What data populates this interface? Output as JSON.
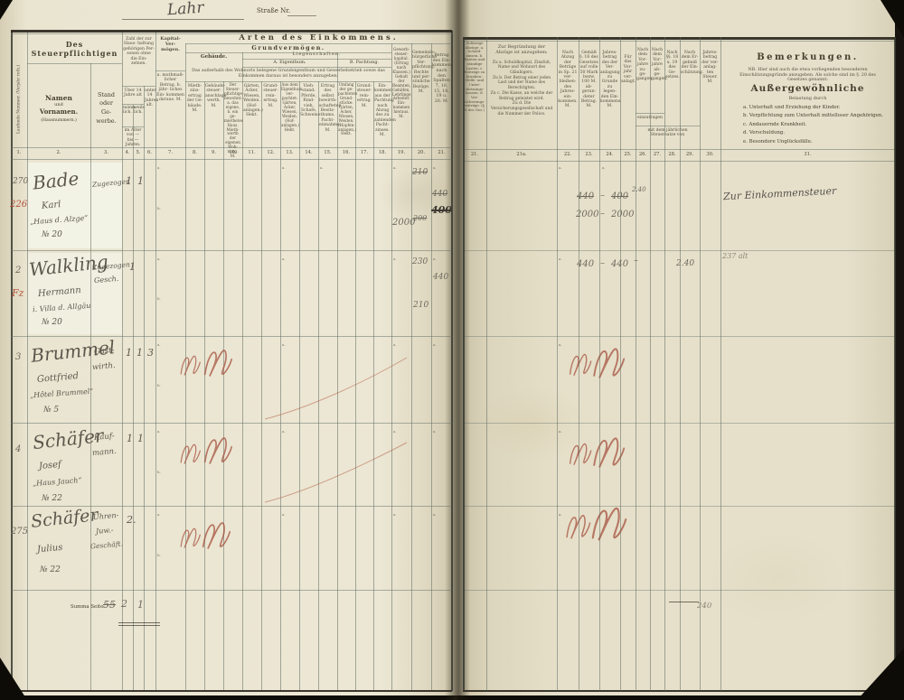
{
  "document": {
    "place": "Lahr",
    "street_label": "Straße Nr."
  },
  "left": {
    "col1_vertical": "Laufende Nummer. (Vorjahr roth.)",
    "taxpayer_group": "Des Steuerpflichtigen",
    "name_title": "Namen",
    "name_mid": "und",
    "name_title2": "Vornamen.",
    "name_sub": "(Hausnummern.)",
    "stand_lines": [
      "Stand",
      "oder",
      "Ge-",
      "werbe."
    ],
    "zahl_head": "Zahl der zur Haus- haltung gehörigen Per- sonen ohne die Ein- zelnen.",
    "over14": "Über 14 Jahre alt",
    "male": "männ- lich.",
    "female": "weib- lich.",
    "under14": "unter 14 Jahren alt.",
    "age_note": "im Alter von — bis — Jahren.",
    "kapital_title": "Kapital- Ver- mögen.",
    "kapital_sub": "a. muthmaß- licher Betrag. b. jähr- liches Ein- kommen daraus. M.",
    "arten": "Arten des Einkommens.",
    "grund": "Grundvermögen.",
    "gebaeude": "Gebäude.",
    "liegenschaften": "Liegenschaften.",
    "eigentum": "A. Eigenthum.",
    "pachtung": "B. Pachtung.",
    "note": "Das außerhalb des Wohnorts belegene Grundeigenthum und Gewerbebetrieb sowie das Einkommen daraus ist besonders anzugeben.",
    "c8": "Mieth- zins- ertrag der Ge- bäude. M.",
    "c9": "Gebäude- steuer- anschlags- werth. M.",
    "c10": "Der Steuer- pflichtige bewohnt: a. das eigene, b. ein ge- miethetes Haus. Mieth- werth der eigenen Woh- nung. M.",
    "c11": "Gärten, Äcker, Wiesen, Weiden. (Hof- anlagen.) Hekt.",
    "c12": "Grund- steuer- rein- ertrag. M.",
    "c13": "Aus dem Eigenthum ver- pachtet: Gärten, Äcker, Wiesen, Weiden. (Hof- anlagen.) Hekt.",
    "c14": "Vieh- stand: Pferde, Rind- vieh, Schafe, Schweine.",
    "c15": "Ertrag des selbst bewirth- schafteten Besitz- thums. Pacht- einnahme. M.",
    "c16": "Umfang der ge- pachteten Grund- stücke: Gärten, Äcker, Wiesen, Weiden. (Hopfen- anlagen.) Hekt.",
    "c17": "Grund- steuer- rein- ertrag. M.",
    "c18": "Ein- kommen aus der Pachtung nach Abzug des zu zahlenden Pacht- zinses. M.",
    "c19": "Gewerb- steuer- kapital. (Ertrag nach Klassen.) Gehalt der Beamten, Gehilfen, Lehrlinge, Arbeiter. Ein- kommen hieraus. M.",
    "c20": "Gemeinde- bürgerliche Ver- pflichtung. Rechte und per- sönliche Bezüge. M.",
    "c21": "Betrag des Ein- kommens nach den Spalten 7, 10, 15, 18, 19 u. 20. M.",
    "nums": [
      "1.",
      "2.",
      "3.",
      "4.",
      "5.",
      "6.",
      "7.",
      "8.",
      "9.",
      "10.",
      "11.",
      "12.",
      "13.",
      "14.",
      "15.",
      "16.",
      "17.",
      "18.",
      "19.",
      "20.",
      "21."
    ]
  },
  "right": {
    "c21r": "Zulässige Abzüge: a. Schuld- zinsen. b. Renten und ständige Lasten. c. Beiträge zu Kranken-, Hülfs- und Unter- stützungs- kassen. d. Ver- sicherungs- beiträge. (§. 8 des Ges.)",
    "c21a_head": "Zur Begründung der Abzüge ist anzugeben:",
    "c21a_items": [
      "Zu a. Schuldkapital, Zinsfuß, Name und Wohnort des Gläubigers.",
      "Zu b. Der Betrag einer jeden Last und der Name des Berechtigten.",
      "Zu c. Die Kasse, an welche der Beitrag geleistet wird.",
      "Zu d. Die Versicherungsgesellschaft und die Nummer der Police."
    ],
    "c22": "Nach Abzug der Beträge in Sp. 21 ver- bleiben- des Jahres- ein- kommen. M.",
    "c23": "Gemäß §. 16 des Gesetzes auf volle 50 Mark bezw. 100 M. ab- gerun- deter Betrag. M.",
    "c24": "Jahres- betrag des der Ver- anlagung zu Grunde zu legen- den Ein- kommens. M.",
    "c25": "Für das Vor- jahr ver- anlagt.",
    "c26": "Nach dem Vor- jahre zu- ge- gangen.",
    "c27": "Nach dem Vor- jahre ab- ge- gangen.",
    "c2627_note1": "einzutragen",
    "c2627_note2": "mit dem jährlichen Steuersatze von",
    "c28": "Nach §§. 18 u. 19 des Ge- setzes.",
    "c29": "Nach dem Er- gebniß der Ein- schätzung.",
    "c30": "Jahres- betrag der ver- anlag- ten Steuer. M.",
    "nums": [
      "21.",
      "21a.",
      "22.",
      "23.",
      "24.",
      "25.",
      "26.",
      "27.",
      "28.",
      "29.",
      "30.",
      "31."
    ]
  },
  "bemerkungen": {
    "title": "Bemerkungen.",
    "para": "NB. Hier sind auch die etwa vorliegenden besonderen Einschätzungsgründe anzugeben. Als solche sind im §. 20 des Gesetzes genannt:",
    "sub_title": "Außergewöhnliche",
    "sub_sub": "Belastung durch",
    "items": [
      "a. Unterhalt und Erziehung der Kinder.",
      "b. Verpflichtung zum Unterhalt mittelloser Angehörigen.",
      "c. Andauernde Krankheit.",
      "d. Verschuldung.",
      "e. Besondere Unglücksfälle."
    ]
  },
  "rows": [
    {
      "no": "270",
      "no2": "226",
      "n1": "Bade",
      "n2": "Karl",
      "n3": "„Haus d. Alzge“",
      "n4": "№ 20",
      "s1": "Zugezogen",
      "s2": "",
      "p4": "1",
      "p5": "1",
      "p6": "",
      "k19": "2000",
      "k20a": "210",
      "k20b": "200",
      "k21a": "440",
      "k21b": "400",
      "r1": "440",
      "d1": "–",
      "r2": "400",
      "sup": "2.40",
      "r3": "2000",
      "d2": "–",
      "r4": "2000",
      "tax": "",
      "bem": "Zur Einkommensteuer"
    },
    {
      "no": "2",
      "no2": "Fz",
      "n1": "Walkling",
      "n2": "Hermann",
      "n3": "i. Villa d. Allgäu",
      "n4": "№ 20",
      "s1": "Zugezogen",
      "s2": "Gesch.",
      "p4": "1",
      "k20a": "230",
      "k20b": "210",
      "k21a": "440",
      "r1": "440",
      "d1": "–",
      "r2": "440",
      "d2": "–",
      "tax": "2.40",
      "bem": "237 alt"
    },
    {
      "no": "3",
      "n1": "Brummel",
      "n2": "Gottfried",
      "n3": "„Hôtel Brummel“",
      "n4": "№ 5",
      "s1": "Gast-",
      "s2": "wirth.",
      "p4": "1",
      "p5": "1",
      "p6": "3"
    },
    {
      "no": "4",
      "n1": "Schäfer",
      "n2": "Josef",
      "n3": "„Haus Jauch“",
      "n4": "№ 22",
      "s1": "Kauf-",
      "s2": "mann.",
      "p4": "1",
      "p5": "1"
    },
    {
      "no": "275",
      "n1": "Schäfer",
      "n2": "Julius",
      "n3": "№ 22",
      "s1": "Uhren-",
      "s2": "Juw.-",
      "s3": "Geschäft.",
      "p4": "2."
    }
  ],
  "summary": {
    "label": "Summa Seite",
    "v1": "55",
    "v2": "2",
    "v3": "1",
    "total": "240"
  },
  "marks": {
    "a": "a.",
    "b": "b."
  }
}
